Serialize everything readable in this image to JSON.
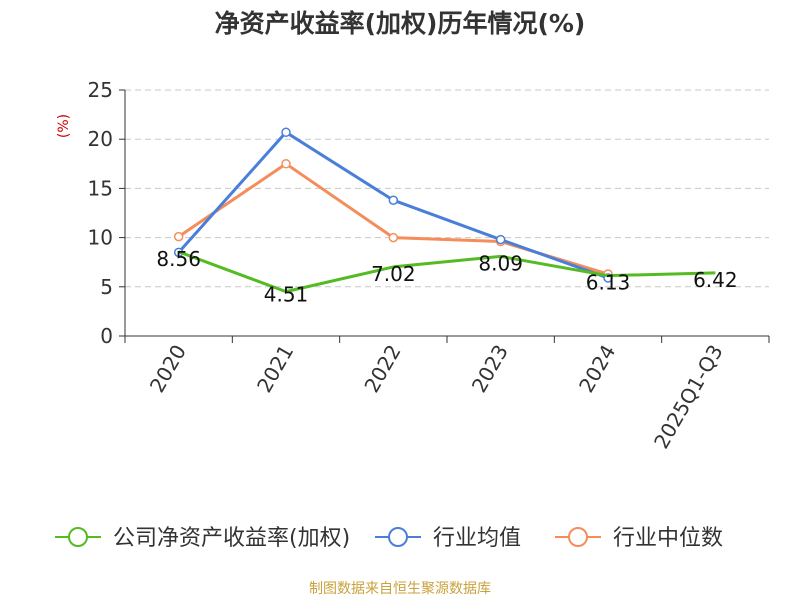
{
  "source_note": "制图数据来自恒生聚源数据库",
  "chart_data": {
    "type": "line",
    "title": "净资产收益率(加权)历年情况(%)",
    "xlabel": "",
    "ylabel": "(%)",
    "categories": [
      "2020",
      "2021",
      "2022",
      "2023",
      "2024",
      "2025Q1-Q3"
    ],
    "ylim": [
      0,
      25
    ],
    "yticks": [
      0,
      5,
      10,
      15,
      20,
      25
    ],
    "grid": true,
    "legend_position": "bottom",
    "ylabel_color": "#cc0000",
    "series": [
      {
        "name": "公司净资产收益率(加权)",
        "color": "#55bb22",
        "values": [
          8.56,
          4.51,
          7.02,
          8.09,
          6.13,
          6.42
        ],
        "labels": [
          "8.56",
          "4.51",
          "7.02",
          "8.09",
          "6.13",
          "6.42"
        ]
      },
      {
        "name": "行业均值",
        "color": "#4a7fd9",
        "values": [
          8.5,
          20.7,
          13.8,
          9.8,
          5.9,
          null
        ]
      },
      {
        "name": "行业中位数",
        "color": "#f58d5a",
        "values": [
          10.1,
          17.5,
          10.0,
          9.6,
          6.3,
          null
        ]
      }
    ]
  }
}
